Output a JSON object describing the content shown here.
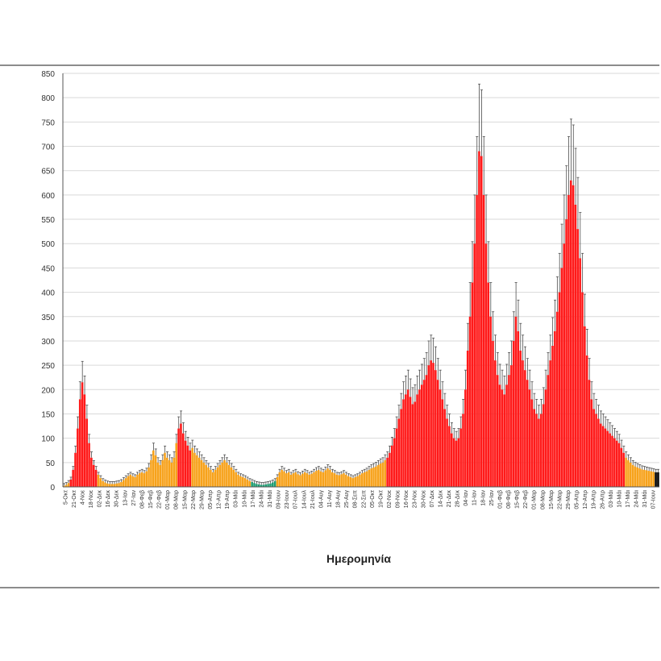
{
  "colors": {
    "high": "#ff1a1a",
    "medium": "#f7a21b",
    "low": "#1f9e73",
    "error": "#4d4d4d",
    "grid": "#d9d9d9"
  },
  "chart_data": {
    "type": "bar",
    "xlabel": "Ημερομηνία",
    "ylabel": "",
    "ylim": [
      0,
      850
    ],
    "yticks": [
      0,
      50,
      100,
      150,
      200,
      250,
      300,
      350,
      400,
      450,
      500,
      550,
      600,
      650,
      700,
      750,
      800,
      850
    ],
    "grid": true,
    "error_bars": true,
    "tick_labels": [
      "5-Οκτ",
      "21-Οκτ",
      "4-Νοε",
      "18-Νοε",
      "02-Δεκ",
      "16-Δεκ",
      "30-Δεκ",
      "13-Ιαν",
      "27-Ιαν",
      "08-Φεβ",
      "15-Φεβ",
      "22-Φεβ",
      "01-Μαρ",
      "08-Μαρ",
      "15-Μαρ",
      "22-Μαρ",
      "29-Μαρ",
      "05-Απρ",
      "12-Απρ",
      "19-Απρ",
      "03-Μάι",
      "10-Μάι",
      "17-Μάι",
      "24-Μάι",
      "31-Μάι",
      "09-Ιουν",
      "23-Ιουν",
      "07-Ιουλ",
      "14-Ιουλ",
      "21-Ιουλ",
      "04-Αυγ",
      "11-Αυγ",
      "18-Αυγ",
      "25-Αυγ",
      "08-Σεπ",
      "22-Σεπ",
      "05-Οκτ",
      "19-Οκτ",
      "02-Νοε",
      "09-Νοε",
      "16-Νοε",
      "23-Νοε",
      "30-Νοε",
      "07-Δεκ",
      "14-Δεκ",
      "21-Δεκ",
      "28-Δεκ",
      "04-Ιαν",
      "11-Ιαν",
      "18-Ιαν",
      "25-Ιαν",
      "01-Φεβ",
      "08-Φεβ",
      "15-Φεβ",
      "22-Φεβ",
      "01-Μαρ",
      "08-Μαρ",
      "15-Μαρ",
      "22-Μαρ",
      "29-Μαρ",
      "05-Απρ",
      "12-Απρ",
      "19-Απρ",
      "26-Απρ",
      "03-Μάι",
      "10-Μάι",
      "17-Μάι",
      "24-Μάι",
      "31-Μάι",
      "07-Ιουν"
    ],
    "series": [
      {
        "level_legend": {
          "1": "high",
          "2": "medium",
          "3": "low"
        },
        "values": [
          2,
          4,
          8,
          15,
          35,
          70,
          120,
          180,
          215,
          190,
          140,
          90,
          60,
          45,
          35,
          25,
          18,
          12,
          9,
          7,
          6,
          6,
          6,
          7,
          8,
          10,
          14,
          18,
          22,
          25,
          22,
          20,
          25,
          28,
          30,
          28,
          32,
          40,
          55,
          75,
          65,
          50,
          45,
          55,
          70,
          60,
          55,
          50,
          60,
          90,
          120,
          130,
          110,
          95,
          85,
          75,
          80,
          70,
          65,
          60,
          55,
          50,
          45,
          40,
          35,
          30,
          35,
          40,
          45,
          50,
          55,
          50,
          45,
          40,
          35,
          30,
          25,
          22,
          20,
          18,
          15,
          12,
          10,
          8,
          6,
          5,
          4,
          4,
          5,
          6,
          7,
          9,
          12,
          20,
          30,
          35,
          32,
          28,
          30,
          25,
          28,
          30,
          26,
          24,
          27,
          30,
          28,
          25,
          27,
          30,
          33,
          35,
          32,
          30,
          34,
          38,
          35,
          30,
          28,
          25,
          24,
          26,
          28,
          25,
          22,
          20,
          18,
          20,
          22,
          25,
          28,
          30,
          32,
          35,
          38,
          40,
          42,
          45,
          48,
          50,
          55,
          60,
          70,
          85,
          100,
          120,
          140,
          160,
          180,
          190,
          200,
          185,
          170,
          175,
          190,
          200,
          210,
          220,
          230,
          250,
          260,
          255,
          240,
          220,
          200,
          180,
          160,
          140,
          125,
          110,
          100,
          95,
          100,
          120,
          150,
          200,
          280,
          350,
          420,
          500,
          600,
          690,
          680,
          600,
          500,
          420,
          350,
          300,
          260,
          230,
          210,
          200,
          190,
          210,
          230,
          250,
          300,
          350,
          320,
          280,
          260,
          240,
          220,
          200,
          180,
          160,
          150,
          140,
          150,
          170,
          200,
          230,
          260,
          290,
          320,
          360,
          400,
          450,
          500,
          550,
          600,
          630,
          620,
          580,
          530,
          470,
          400,
          330,
          270,
          220,
          180,
          160,
          150,
          140,
          130,
          125,
          120,
          115,
          110,
          105,
          100,
          95,
          90,
          80,
          70,
          60,
          55,
          50,
          45,
          42,
          40,
          38,
          36,
          35,
          34,
          33,
          32,
          31,
          30,
          30
        ],
        "levels": [
          2,
          2,
          2,
          1,
          1,
          1,
          1,
          1,
          1,
          1,
          1,
          1,
          1,
          1,
          1,
          2,
          2,
          2,
          2,
          2,
          2,
          2,
          2,
          2,
          2,
          2,
          2,
          2,
          2,
          2,
          2,
          2,
          2,
          2,
          2,
          2,
          2,
          2,
          2,
          2,
          2,
          2,
          2,
          2,
          2,
          2,
          2,
          2,
          2,
          2,
          1,
          1,
          1,
          1,
          1,
          1,
          2,
          2,
          2,
          2,
          2,
          2,
          2,
          2,
          2,
          2,
          2,
          2,
          2,
          2,
          2,
          2,
          2,
          2,
          2,
          2,
          2,
          2,
          2,
          2,
          2,
          2,
          3,
          3,
          3,
          3,
          3,
          3,
          3,
          3,
          3,
          3,
          3,
          2,
          2,
          2,
          2,
          2,
          2,
          2,
          2,
          2,
          2,
          2,
          2,
          2,
          2,
          2,
          2,
          2,
          2,
          2,
          2,
          2,
          2,
          2,
          2,
          2,
          2,
          2,
          2,
          2,
          2,
          2,
          2,
          2,
          2,
          2,
          2,
          2,
          2,
          2,
          2,
          2,
          2,
          2,
          2,
          2,
          2,
          2,
          2,
          1,
          1,
          1,
          1,
          1,
          1,
          1,
          1,
          1,
          1,
          1,
          1,
          1,
          1,
          1,
          1,
          1,
          1,
          1,
          1,
          1,
          1,
          1,
          1,
          1,
          1,
          1,
          1,
          1,
          1,
          1,
          1,
          1,
          1,
          1,
          1,
          1,
          1,
          1,
          1,
          1,
          1,
          1,
          1,
          1,
          1,
          1,
          1,
          1,
          1,
          1,
          1,
          1,
          1,
          1,
          1,
          1,
          1,
          1,
          1,
          1,
          1,
          1,
          1,
          1,
          1,
          1,
          1,
          1,
          1,
          1,
          1,
          1,
          1,
          1,
          1,
          1,
          1,
          1,
          1,
          1,
          1,
          1,
          1,
          1,
          1,
          1,
          1,
          1,
          1,
          1,
          1,
          1,
          1,
          1,
          1,
          1,
          1,
          1,
          1,
          1,
          1,
          1,
          1,
          2,
          2,
          2,
          2,
          2,
          2,
          2,
          2,
          2,
          2,
          2,
          2,
          2
        ]
      }
    ]
  }
}
